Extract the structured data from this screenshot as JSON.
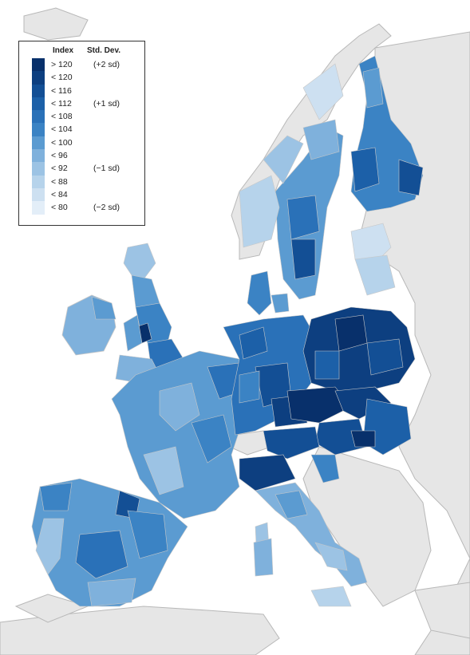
{
  "legend": {
    "col_index": "Index",
    "col_sd": "Std. Dev.",
    "rows": [
      {
        "label": "> 120",
        "sd": "(+2 sd)",
        "color": "#08306b"
      },
      {
        "label": "< 120",
        "sd": "",
        "color": "#0d3f80"
      },
      {
        "label": "< 116",
        "sd": "",
        "color": "#134f95"
      },
      {
        "label": "< 112",
        "sd": "(+1 sd)",
        "color": "#1c60a8"
      },
      {
        "label": "< 108",
        "sd": "",
        "color": "#2a71b8"
      },
      {
        "label": "< 104",
        "sd": "",
        "color": "#3b83c4"
      },
      {
        "label": "< 100",
        "sd": "",
        "color": "#5b9bd1"
      },
      {
        "label": "< 96",
        "sd": "",
        "color": "#7fb1dc"
      },
      {
        "label": "< 92",
        "sd": "(−1 sd)",
        "color": "#9cc3e4"
      },
      {
        "label": "< 88",
        "sd": "",
        "color": "#b6d3eb"
      },
      {
        "label": "< 84",
        "sd": "",
        "color": "#cde0f1"
      },
      {
        "label": "< 80",
        "sd": "(−2 sd)",
        "color": "#e3eef8"
      }
    ]
  },
  "map": {
    "background_land": "#e8e8e8",
    "sea": "#ffffff",
    "border": "#b5b5b5"
  }
}
